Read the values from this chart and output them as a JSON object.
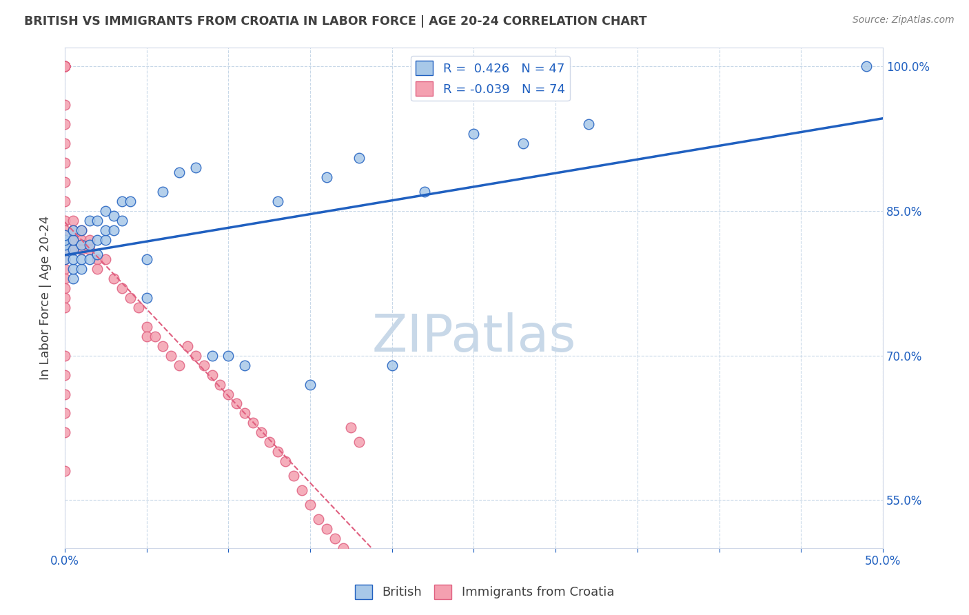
{
  "title": "BRITISH VS IMMIGRANTS FROM CROATIA IN LABOR FORCE | AGE 20-24 CORRELATION CHART",
  "source": "Source: ZipAtlas.com",
  "ylabel": "In Labor Force | Age 20-24",
  "xlim": [
    0.0,
    0.5
  ],
  "ylim": [
    0.5,
    1.02
  ],
  "yticks": [
    0.55,
    0.7,
    0.85,
    1.0
  ],
  "ytick_labels": [
    "55.0%",
    "70.0%",
    "85.0%",
    "100.0%"
  ],
  "british_R": 0.426,
  "british_N": 47,
  "croatia_R": -0.039,
  "croatia_N": 74,
  "british_color": "#a8c8e8",
  "croatia_color": "#f4a0b0",
  "british_line_color": "#2060c0",
  "croatia_line_color": "#e06080",
  "watermark_color": "#c8d8e8",
  "background_color": "#ffffff",
  "title_color": "#404040",
  "axis_color": "#2060c0",
  "british_x": [
    0.0,
    0.0,
    0.0,
    0.0,
    0.0,
    0.005,
    0.005,
    0.005,
    0.005,
    0.005,
    0.005,
    0.01,
    0.01,
    0.01,
    0.01,
    0.015,
    0.015,
    0.015,
    0.02,
    0.02,
    0.02,
    0.025,
    0.025,
    0.025,
    0.03,
    0.03,
    0.035,
    0.035,
    0.04,
    0.05,
    0.05,
    0.06,
    0.07,
    0.08,
    0.09,
    0.1,
    0.11,
    0.13,
    0.15,
    0.16,
    0.18,
    0.2,
    0.22,
    0.25,
    0.28,
    0.32,
    0.49
  ],
  "british_y": [
    0.8,
    0.81,
    0.815,
    0.82,
    0.825,
    0.78,
    0.79,
    0.8,
    0.81,
    0.82,
    0.83,
    0.79,
    0.8,
    0.815,
    0.83,
    0.8,
    0.815,
    0.84,
    0.805,
    0.82,
    0.84,
    0.82,
    0.83,
    0.85,
    0.83,
    0.845,
    0.84,
    0.86,
    0.86,
    0.76,
    0.8,
    0.87,
    0.89,
    0.895,
    0.7,
    0.7,
    0.69,
    0.86,
    0.67,
    0.885,
    0.905,
    0.69,
    0.87,
    0.93,
    0.92,
    0.94,
    1.0
  ],
  "croatia_x": [
    0.0,
    0.0,
    0.0,
    0.0,
    0.0,
    0.0,
    0.0,
    0.0,
    0.0,
    0.0,
    0.0,
    0.0,
    0.0,
    0.0,
    0.0,
    0.0,
    0.0,
    0.0,
    0.0,
    0.0,
    0.0,
    0.0,
    0.0,
    0.0,
    0.0,
    0.0,
    0.0,
    0.0,
    0.0,
    0.0,
    0.005,
    0.005,
    0.005,
    0.005,
    0.01,
    0.01,
    0.01,
    0.015,
    0.015,
    0.02,
    0.02,
    0.025,
    0.03,
    0.035,
    0.04,
    0.045,
    0.05,
    0.05,
    0.055,
    0.06,
    0.065,
    0.07,
    0.075,
    0.08,
    0.085,
    0.09,
    0.095,
    0.1,
    0.105,
    0.11,
    0.115,
    0.12,
    0.125,
    0.13,
    0.135,
    0.14,
    0.145,
    0.15,
    0.155,
    0.16,
    0.165,
    0.17,
    0.175,
    0.18
  ],
  "croatia_y": [
    1.0,
    1.0,
    1.0,
    1.0,
    1.0,
    1.0,
    1.0,
    1.0,
    0.96,
    0.94,
    0.92,
    0.9,
    0.88,
    0.86,
    0.84,
    0.83,
    0.82,
    0.81,
    0.8,
    0.79,
    0.78,
    0.77,
    0.76,
    0.75,
    0.7,
    0.68,
    0.66,
    0.64,
    0.62,
    0.58,
    0.84,
    0.83,
    0.82,
    0.81,
    0.83,
    0.82,
    0.81,
    0.82,
    0.81,
    0.8,
    0.79,
    0.8,
    0.78,
    0.77,
    0.76,
    0.75,
    0.73,
    0.72,
    0.72,
    0.71,
    0.7,
    0.69,
    0.71,
    0.7,
    0.69,
    0.68,
    0.67,
    0.66,
    0.65,
    0.64,
    0.63,
    0.62,
    0.61,
    0.6,
    0.59,
    0.575,
    0.56,
    0.545,
    0.53,
    0.52,
    0.51,
    0.5,
    0.625,
    0.61
  ]
}
